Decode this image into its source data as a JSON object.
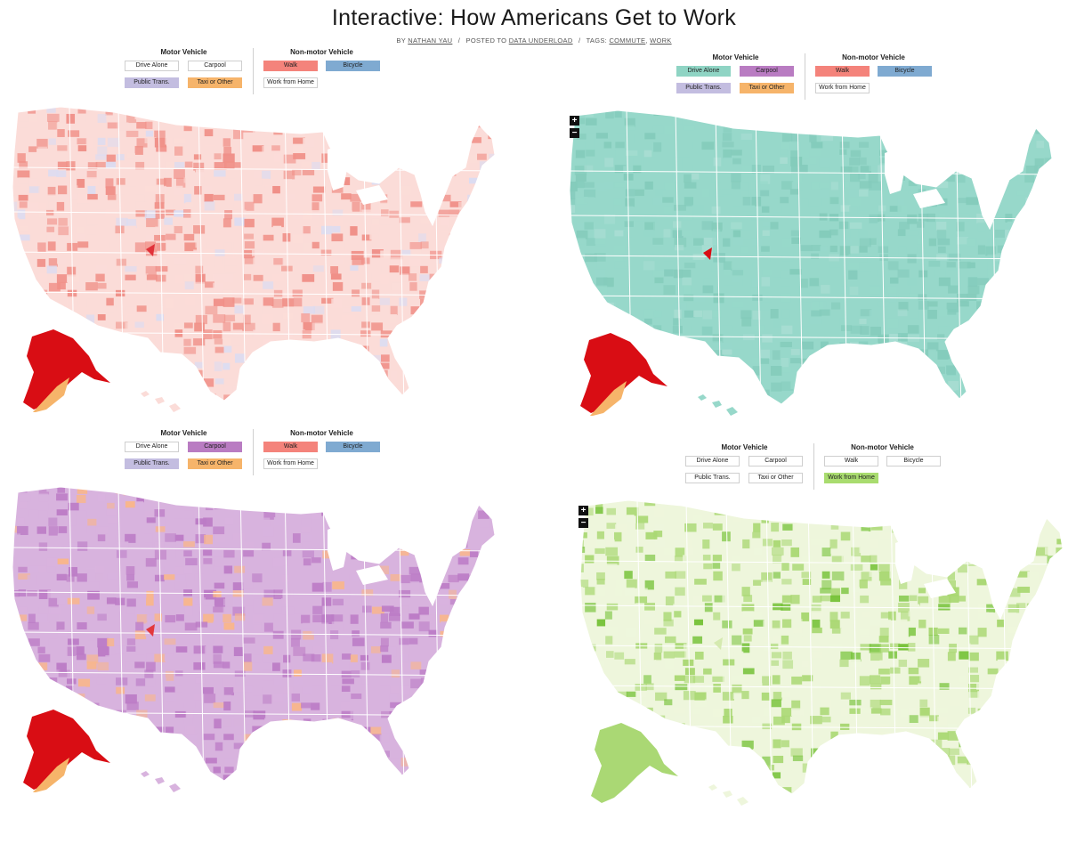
{
  "page": {
    "title": "Interactive: How Americans Get to Work",
    "byline": {
      "by_prefix": "BY",
      "author": "NATHAN YAU",
      "posted_prefix": "POSTED TO",
      "category": "DATA UNDERLOAD",
      "tags_prefix": "TAGS:",
      "tags": [
        "COMMUTE",
        "WORK"
      ]
    }
  },
  "legend": {
    "motor_heading": "Motor Vehicle",
    "nonmotor_heading": "Non-motor Vehicle",
    "buttons": {
      "drive": "Drive Alone",
      "carpool": "Carpool",
      "public": "Public Trans.",
      "taxi": "Taxi or Other",
      "walk": "Walk",
      "bicycle": "Bicycle",
      "home": "Work from Home"
    }
  },
  "colors": {
    "drive": "#8fd4c4",
    "carpool": "#b97cc2",
    "public": "#c3bde0",
    "taxi": "#f6b46a",
    "walk": "#f4837b",
    "bicycle": "#7faad1",
    "home": "#a9dc6f",
    "alaska": "#d90d14",
    "off_state": "#ffffff"
  },
  "zoom": {
    "in": "+",
    "out": "−"
  },
  "panels": [
    {
      "id": "walk",
      "active": [
        "walk",
        "bicycle",
        "public",
        "taxi"
      ],
      "zoom": false,
      "base": "#fbdcd8",
      "dark": "#f09088",
      "speck": "#dcdcf1",
      "streak": "#e1323a"
    },
    {
      "id": "drive",
      "active": [
        "drive",
        "carpool",
        "public",
        "taxi",
        "walk",
        "bicycle"
      ],
      "zoom": true,
      "base": "#97d8ca",
      "dark": "#84cbbb",
      "speck": "#a7ddd2",
      "streak": "#d90d14"
    },
    {
      "id": "carpool",
      "active": [
        "carpool",
        "public",
        "taxi",
        "walk",
        "bicycle"
      ],
      "zoom": false,
      "base": "#d8b3de",
      "dark": "#bc7cc6",
      "speck": "#f8b68d",
      "streak": "#e3373c"
    },
    {
      "id": "home",
      "active": [
        "home"
      ],
      "zoom": true,
      "base": "#eef6dc",
      "dark": "#aad874",
      "speck": "#78c33b",
      "streak": "#d5eab0"
    }
  ]
}
